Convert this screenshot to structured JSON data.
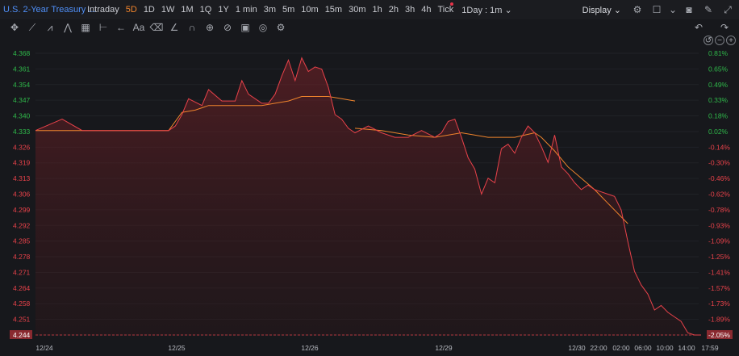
{
  "header": {
    "instrument_title": "U.S. 2-Year Treasury ...",
    "timeframes": [
      {
        "label": "Intraday",
        "active": false
      },
      {
        "label": "5D",
        "active": true
      },
      {
        "label": "1D",
        "active": false
      },
      {
        "label": "1W",
        "active": false
      },
      {
        "label": "1M",
        "active": false
      },
      {
        "label": "1Q",
        "active": false
      },
      {
        "label": "1Y",
        "active": false
      },
      {
        "label": "1 min",
        "active": false
      },
      {
        "label": "3m",
        "active": false
      },
      {
        "label": "5m",
        "active": false
      },
      {
        "label": "10m",
        "active": false
      },
      {
        "label": "15m",
        "active": false
      },
      {
        "label": "30m",
        "active": false
      },
      {
        "label": "1h",
        "active": false
      },
      {
        "label": "2h",
        "active": false
      },
      {
        "label": "3h",
        "active": false
      },
      {
        "label": "4h",
        "active": false
      },
      {
        "label": "Tick",
        "active": false
      }
    ],
    "interval_dropdown": "1Day : 1m",
    "display_label": "Display"
  },
  "colors": {
    "price_line": "#e8424a",
    "average_line": "#f0842c",
    "up_text": "#2fb84a",
    "down_text": "#e8424a",
    "active_tab": "#f0842c",
    "title": "#4f8ff7"
  },
  "chart_data": {
    "type": "line",
    "y_left_ticks": [
      "4.368",
      "4.361",
      "4.354",
      "4.347",
      "4.340",
      "4.333",
      "4.326",
      "4.319",
      "4.313",
      "4.306",
      "4.299",
      "4.292",
      "4.285",
      "4.278",
      "4.271",
      "4.264",
      "4.258",
      "4.251",
      "4.244"
    ],
    "y_right_ticks": [
      "0.81%",
      "0.65%",
      "0.49%",
      "0.33%",
      "0.18%",
      "0.02%",
      "-0.14%",
      "-0.30%",
      "-0.46%",
      "-0.62%",
      "-0.78%",
      "-0.93%",
      "-1.09%",
      "-1.25%",
      "-1.41%",
      "-1.57%",
      "-1.73%",
      "-1.89%",
      "-2.05%"
    ],
    "ylim": [
      4.244,
      4.368
    ],
    "x_tick_labels": [
      "12/24",
      "12/25",
      "12/26",
      "12/29",
      "12/30",
      "22:00",
      "02:00",
      "06:00",
      "10:00",
      "14:00",
      "17:59"
    ],
    "current_value": "4.244",
    "current_change": "-2.05%",
    "price_series": [
      [
        0,
        4.334
      ],
      [
        0.2,
        4.339
      ],
      [
        0.35,
        4.334
      ],
      [
        1,
        4.334
      ],
      [
        1.05,
        4.336
      ],
      [
        1.1,
        4.341
      ],
      [
        1.15,
        4.348
      ],
      [
        1.25,
        4.345
      ],
      [
        1.3,
        4.352
      ],
      [
        1.4,
        4.347
      ],
      [
        1.5,
        4.347
      ],
      [
        1.55,
        4.356
      ],
      [
        1.6,
        4.35
      ],
      [
        1.7,
        4.346
      ],
      [
        1.75,
        4.346
      ],
      [
        1.8,
        4.35
      ],
      [
        1.85,
        4.358
      ],
      [
        1.9,
        4.365
      ],
      [
        1.95,
        4.356
      ],
      [
        2.0,
        4.366
      ],
      [
        2.05,
        4.36
      ],
      [
        2.1,
        4.362
      ],
      [
        2.15,
        4.361
      ],
      [
        2.2,
        4.353
      ],
      [
        2.2,
        4.353
      ],
      [
        2.25,
        4.341
      ],
      [
        2.3,
        4.339
      ],
      [
        2.35,
        4.335
      ],
      [
        2.4,
        4.333
      ],
      [
        2.5,
        4.336
      ],
      [
        2.6,
        4.333
      ],
      [
        2.7,
        4.331
      ],
      [
        2.8,
        4.331
      ],
      [
        2.9,
        4.334
      ],
      [
        3.0,
        4.331
      ],
      [
        3.05,
        4.333
      ],
      [
        3.1,
        4.338
      ],
      [
        3.15,
        4.339
      ],
      [
        3.2,
        4.331
      ],
      [
        3.25,
        4.322
      ],
      [
        3.3,
        4.317
      ],
      [
        3.35,
        4.306
      ],
      [
        3.4,
        4.313
      ],
      [
        3.45,
        4.311
      ],
      [
        3.5,
        4.326
      ],
      [
        3.55,
        4.328
      ],
      [
        3.6,
        4.324
      ],
      [
        3.65,
        4.331
      ],
      [
        3.7,
        4.336
      ],
      [
        3.75,
        4.333
      ],
      [
        3.75,
        4.333
      ],
      [
        3.8,
        4.327
      ],
      [
        3.85,
        4.32
      ],
      [
        3.9,
        4.332
      ],
      [
        3.95,
        4.318
      ],
      [
        4.0,
        4.315
      ],
      [
        4.05,
        4.311
      ],
      [
        4.1,
        4.308
      ],
      [
        4.15,
        4.31
      ],
      [
        4.2,
        4.308
      ],
      [
        4.25,
        4.307
      ],
      [
        4.3,
        4.306
      ],
      [
        4.35,
        4.305
      ],
      [
        4.4,
        4.299
      ],
      [
        4.45,
        4.285
      ],
      [
        4.5,
        4.272
      ],
      [
        4.55,
        4.266
      ],
      [
        4.6,
        4.262
      ],
      [
        4.65,
        4.255
      ],
      [
        4.7,
        4.257
      ],
      [
        4.75,
        4.254
      ],
      [
        4.8,
        4.252
      ],
      [
        4.85,
        4.25
      ],
      [
        4.9,
        4.245
      ],
      [
        4.95,
        4.244
      ],
      [
        5.0,
        4.244
      ],
      [
        5.0,
        4.244
      ]
    ],
    "average_series": [
      [
        0,
        4.334
      ],
      [
        1,
        4.334
      ],
      [
        1.05,
        4.338
      ],
      [
        1.1,
        4.342
      ],
      [
        1.2,
        4.343
      ],
      [
        1.3,
        4.345
      ],
      [
        1.5,
        4.345
      ],
      [
        1.7,
        4.345
      ],
      [
        1.8,
        4.346
      ],
      [
        1.9,
        4.347
      ],
      [
        2.0,
        4.349
      ],
      [
        2.1,
        4.349
      ],
      [
        2.2,
        4.349
      ],
      [
        2.3,
        4.348
      ],
      [
        2.4,
        4.347
      ],
      [
        2.4,
        4.335
      ],
      [
        2.6,
        4.334
      ],
      [
        2.8,
        4.332
      ],
      [
        3.0,
        4.331
      ],
      [
        3.2,
        4.333
      ],
      [
        3.4,
        4.331
      ],
      [
        3.6,
        4.331
      ],
      [
        3.75,
        4.333
      ],
      [
        3.75,
        4.333
      ],
      [
        3.8,
        4.331
      ],
      [
        3.9,
        4.325
      ],
      [
        4.0,
        4.318
      ],
      [
        4.1,
        4.313
      ],
      [
        4.2,
        4.308
      ],
      [
        4.3,
        4.302
      ],
      [
        4.4,
        4.296
      ],
      [
        4.45,
        4.293
      ]
    ]
  }
}
